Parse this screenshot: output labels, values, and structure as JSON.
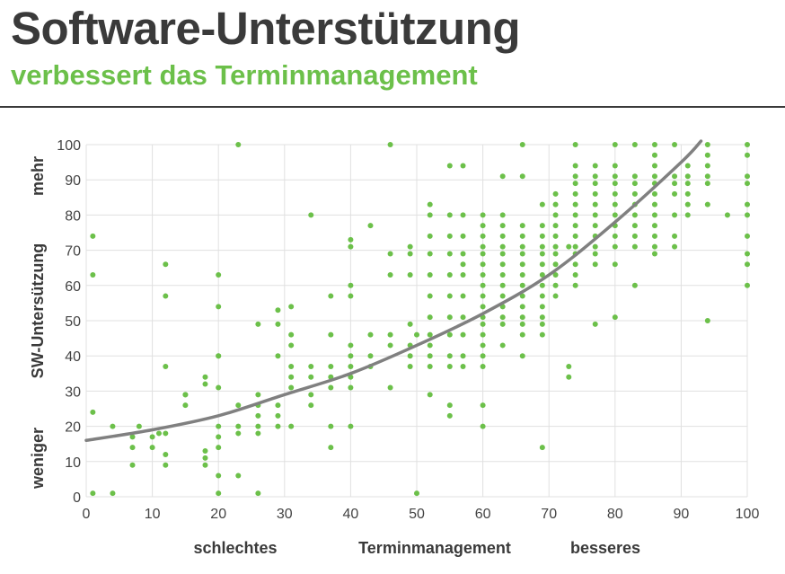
{
  "title": "Software-Unterstützung",
  "subtitle": "verbessert das Terminmanagement",
  "colors": {
    "title": "#3a3a3a",
    "accent": "#6cc04a",
    "points": "#6cc04a",
    "trend": "#808080",
    "grid": "#e0e0e0"
  },
  "chart_data": {
    "type": "scatter",
    "xlabel": "Terminmanagement",
    "ylabel": "SW-Untersützung",
    "x_annotations": {
      "low": "schlechtes",
      "high": "besseres"
    },
    "y_annotations": {
      "low": "weniger",
      "high": "mehr"
    },
    "xlim": [
      0,
      100
    ],
    "ylim": [
      0,
      100
    ],
    "x_ticks": [
      0,
      10,
      20,
      30,
      40,
      50,
      60,
      70,
      80,
      90,
      100
    ],
    "y_ticks": [
      0,
      10,
      20,
      30,
      40,
      50,
      60,
      70,
      80,
      90,
      100
    ],
    "grid": true,
    "trendline": {
      "type": "quadratic",
      "points": [
        [
          0,
          16
        ],
        [
          10,
          19
        ],
        [
          20,
          23
        ],
        [
          30,
          29
        ],
        [
          40,
          35
        ],
        [
          50,
          43
        ],
        [
          60,
          52
        ],
        [
          70,
          63
        ],
        [
          80,
          78
        ],
        [
          90,
          95
        ],
        [
          93,
          101
        ]
      ]
    },
    "points": [
      [
        1,
        74
      ],
      [
        1,
        63
      ],
      [
        1,
        24
      ],
      [
        1,
        1
      ],
      [
        4,
        20
      ],
      [
        4,
        1
      ],
      [
        7,
        17
      ],
      [
        7,
        14
      ],
      [
        7,
        9
      ],
      [
        8,
        20
      ],
      [
        10,
        17
      ],
      [
        10,
        14
      ],
      [
        11,
        18
      ],
      [
        12,
        66
      ],
      [
        12,
        57
      ],
      [
        12,
        37
      ],
      [
        12,
        18
      ],
      [
        12,
        12
      ],
      [
        12,
        9
      ],
      [
        15,
        29
      ],
      [
        15,
        26
      ],
      [
        15,
        29
      ],
      [
        18,
        34
      ],
      [
        18,
        32
      ],
      [
        18,
        13
      ],
      [
        18,
        11
      ],
      [
        18,
        9
      ],
      [
        20,
        63
      ],
      [
        20,
        54
      ],
      [
        20,
        40
      ],
      [
        20,
        40
      ],
      [
        20,
        31
      ],
      [
        20,
        20
      ],
      [
        20,
        17
      ],
      [
        20,
        14
      ],
      [
        20,
        6
      ],
      [
        20,
        1
      ],
      [
        23,
        100
      ],
      [
        23,
        26
      ],
      [
        23,
        20
      ],
      [
        23,
        18
      ],
      [
        23,
        6
      ],
      [
        26,
        49
      ],
      [
        26,
        29
      ],
      [
        26,
        26
      ],
      [
        26,
        23
      ],
      [
        26,
        20
      ],
      [
        26,
        18
      ],
      [
        26,
        1
      ],
      [
        29,
        53
      ],
      [
        29,
        49
      ],
      [
        29,
        40
      ],
      [
        29,
        26
      ],
      [
        29,
        23
      ],
      [
        29,
        20
      ],
      [
        31,
        54
      ],
      [
        31,
        46
      ],
      [
        31,
        43
      ],
      [
        31,
        37
      ],
      [
        31,
        34
      ],
      [
        31,
        31
      ],
      [
        31,
        20
      ],
      [
        34,
        80
      ],
      [
        34,
        37
      ],
      [
        34,
        34
      ],
      [
        34,
        29
      ],
      [
        34,
        26
      ],
      [
        37,
        57
      ],
      [
        37,
        46
      ],
      [
        37,
        37
      ],
      [
        37,
        34
      ],
      [
        37,
        31
      ],
      [
        37,
        20
      ],
      [
        37,
        14
      ],
      [
        40,
        73
      ],
      [
        40,
        71
      ],
      [
        40,
        60
      ],
      [
        40,
        57
      ],
      [
        40,
        43
      ],
      [
        40,
        40
      ],
      [
        40,
        37
      ],
      [
        40,
        34
      ],
      [
        40,
        31
      ],
      [
        40,
        20
      ],
      [
        43,
        77
      ],
      [
        43,
        46
      ],
      [
        43,
        40
      ],
      [
        43,
        37
      ],
      [
        46,
        100
      ],
      [
        46,
        69
      ],
      [
        46,
        63
      ],
      [
        46,
        46
      ],
      [
        46,
        43
      ],
      [
        46,
        31
      ],
      [
        49,
        71
      ],
      [
        49,
        69
      ],
      [
        49,
        63
      ],
      [
        49,
        49
      ],
      [
        49,
        43
      ],
      [
        49,
        40
      ],
      [
        49,
        37
      ],
      [
        50,
        46
      ],
      [
        50,
        1
      ],
      [
        52,
        83
      ],
      [
        52,
        80
      ],
      [
        52,
        74
      ],
      [
        52,
        69
      ],
      [
        52,
        63
      ],
      [
        52,
        57
      ],
      [
        52,
        51
      ],
      [
        52,
        46
      ],
      [
        52,
        43
      ],
      [
        52,
        40
      ],
      [
        52,
        37
      ],
      [
        52,
        29
      ],
      [
        55,
        94
      ],
      [
        55,
        80
      ],
      [
        55,
        74
      ],
      [
        55,
        69
      ],
      [
        55,
        63
      ],
      [
        55,
        57
      ],
      [
        55,
        51
      ],
      [
        55,
        46
      ],
      [
        55,
        40
      ],
      [
        55,
        37
      ],
      [
        55,
        26
      ],
      [
        55,
        23
      ],
      [
        57,
        94
      ],
      [
        57,
        80
      ],
      [
        57,
        74
      ],
      [
        57,
        69
      ],
      [
        57,
        63
      ],
      [
        57,
        57
      ],
      [
        57,
        51
      ],
      [
        57,
        46
      ],
      [
        57,
        40
      ],
      [
        57,
        37
      ],
      [
        57,
        66
      ],
      [
        60,
        80
      ],
      [
        60,
        77
      ],
      [
        60,
        74
      ],
      [
        60,
        71
      ],
      [
        60,
        69
      ],
      [
        60,
        66
      ],
      [
        60,
        63
      ],
      [
        60,
        60
      ],
      [
        60,
        57
      ],
      [
        60,
        54
      ],
      [
        60,
        51
      ],
      [
        60,
        49
      ],
      [
        60,
        46
      ],
      [
        60,
        43
      ],
      [
        60,
        40
      ],
      [
        60,
        37
      ],
      [
        60,
        26
      ],
      [
        60,
        20
      ],
      [
        63,
        91
      ],
      [
        63,
        80
      ],
      [
        63,
        77
      ],
      [
        63,
        74
      ],
      [
        63,
        71
      ],
      [
        63,
        69
      ],
      [
        63,
        66
      ],
      [
        63,
        63
      ],
      [
        63,
        60
      ],
      [
        63,
        57
      ],
      [
        63,
        54
      ],
      [
        63,
        51
      ],
      [
        63,
        49
      ],
      [
        63,
        43
      ],
      [
        66,
        100
      ],
      [
        66,
        91
      ],
      [
        66,
        77
      ],
      [
        66,
        74
      ],
      [
        66,
        71
      ],
      [
        66,
        69
      ],
      [
        66,
        66
      ],
      [
        66,
        63
      ],
      [
        66,
        60
      ],
      [
        66,
        57
      ],
      [
        66,
        54
      ],
      [
        66,
        51
      ],
      [
        66,
        49
      ],
      [
        66,
        46
      ],
      [
        66,
        40
      ],
      [
        69,
        83
      ],
      [
        69,
        77
      ],
      [
        69,
        74
      ],
      [
        69,
        71
      ],
      [
        69,
        69
      ],
      [
        69,
        66
      ],
      [
        69,
        63
      ],
      [
        69,
        60
      ],
      [
        69,
        57
      ],
      [
        69,
        54
      ],
      [
        69,
        51
      ],
      [
        69,
        49
      ],
      [
        69,
        46
      ],
      [
        69,
        14
      ],
      [
        71,
        86
      ],
      [
        71,
        83
      ],
      [
        71,
        80
      ],
      [
        71,
        77
      ],
      [
        71,
        74
      ],
      [
        71,
        71
      ],
      [
        71,
        69
      ],
      [
        71,
        66
      ],
      [
        71,
        63
      ],
      [
        71,
        60
      ],
      [
        71,
        57
      ],
      [
        73,
        37
      ],
      [
        73,
        34
      ],
      [
        73,
        71
      ],
      [
        74,
        100
      ],
      [
        74,
        94
      ],
      [
        74,
        91
      ],
      [
        74,
        89
      ],
      [
        74,
        86
      ],
      [
        74,
        83
      ],
      [
        74,
        80
      ],
      [
        74,
        77
      ],
      [
        74,
        74
      ],
      [
        74,
        71
      ],
      [
        74,
        69
      ],
      [
        74,
        66
      ],
      [
        74,
        63
      ],
      [
        74,
        60
      ],
      [
        77,
        94
      ],
      [
        77,
        91
      ],
      [
        77,
        89
      ],
      [
        77,
        86
      ],
      [
        77,
        83
      ],
      [
        77,
        80
      ],
      [
        77,
        77
      ],
      [
        77,
        74
      ],
      [
        77,
        71
      ],
      [
        77,
        69
      ],
      [
        77,
        66
      ],
      [
        77,
        49
      ],
      [
        80,
        100
      ],
      [
        80,
        94
      ],
      [
        80,
        91
      ],
      [
        80,
        89
      ],
      [
        80,
        86
      ],
      [
        80,
        83
      ],
      [
        80,
        80
      ],
      [
        80,
        77
      ],
      [
        80,
        74
      ],
      [
        80,
        71
      ],
      [
        80,
        66
      ],
      [
        80,
        51
      ],
      [
        83,
        100
      ],
      [
        83,
        91
      ],
      [
        83,
        89
      ],
      [
        83,
        86
      ],
      [
        83,
        83
      ],
      [
        83,
        80
      ],
      [
        83,
        77
      ],
      [
        83,
        74
      ],
      [
        83,
        71
      ],
      [
        83,
        60
      ],
      [
        86,
        100
      ],
      [
        86,
        97
      ],
      [
        86,
        94
      ],
      [
        86,
        91
      ],
      [
        86,
        89
      ],
      [
        86,
        86
      ],
      [
        86,
        83
      ],
      [
        86,
        80
      ],
      [
        86,
        77
      ],
      [
        86,
        74
      ],
      [
        86,
        71
      ],
      [
        86,
        69
      ],
      [
        89,
        100
      ],
      [
        89,
        91
      ],
      [
        89,
        89
      ],
      [
        89,
        86
      ],
      [
        89,
        80
      ],
      [
        89,
        74
      ],
      [
        89,
        71
      ],
      [
        91,
        94
      ],
      [
        91,
        91
      ],
      [
        91,
        89
      ],
      [
        91,
        86
      ],
      [
        91,
        83
      ],
      [
        91,
        80
      ],
      [
        94,
        100
      ],
      [
        94,
        97
      ],
      [
        94,
        94
      ],
      [
        94,
        91
      ],
      [
        94,
        89
      ],
      [
        94,
        83
      ],
      [
        94,
        50
      ],
      [
        97,
        80
      ],
      [
        100,
        100
      ],
      [
        100,
        97
      ],
      [
        100,
        91
      ],
      [
        100,
        89
      ],
      [
        100,
        83
      ],
      [
        100,
        80
      ],
      [
        100,
        74
      ],
      [
        100,
        69
      ],
      [
        100,
        66
      ],
      [
        100,
        60
      ]
    ]
  }
}
